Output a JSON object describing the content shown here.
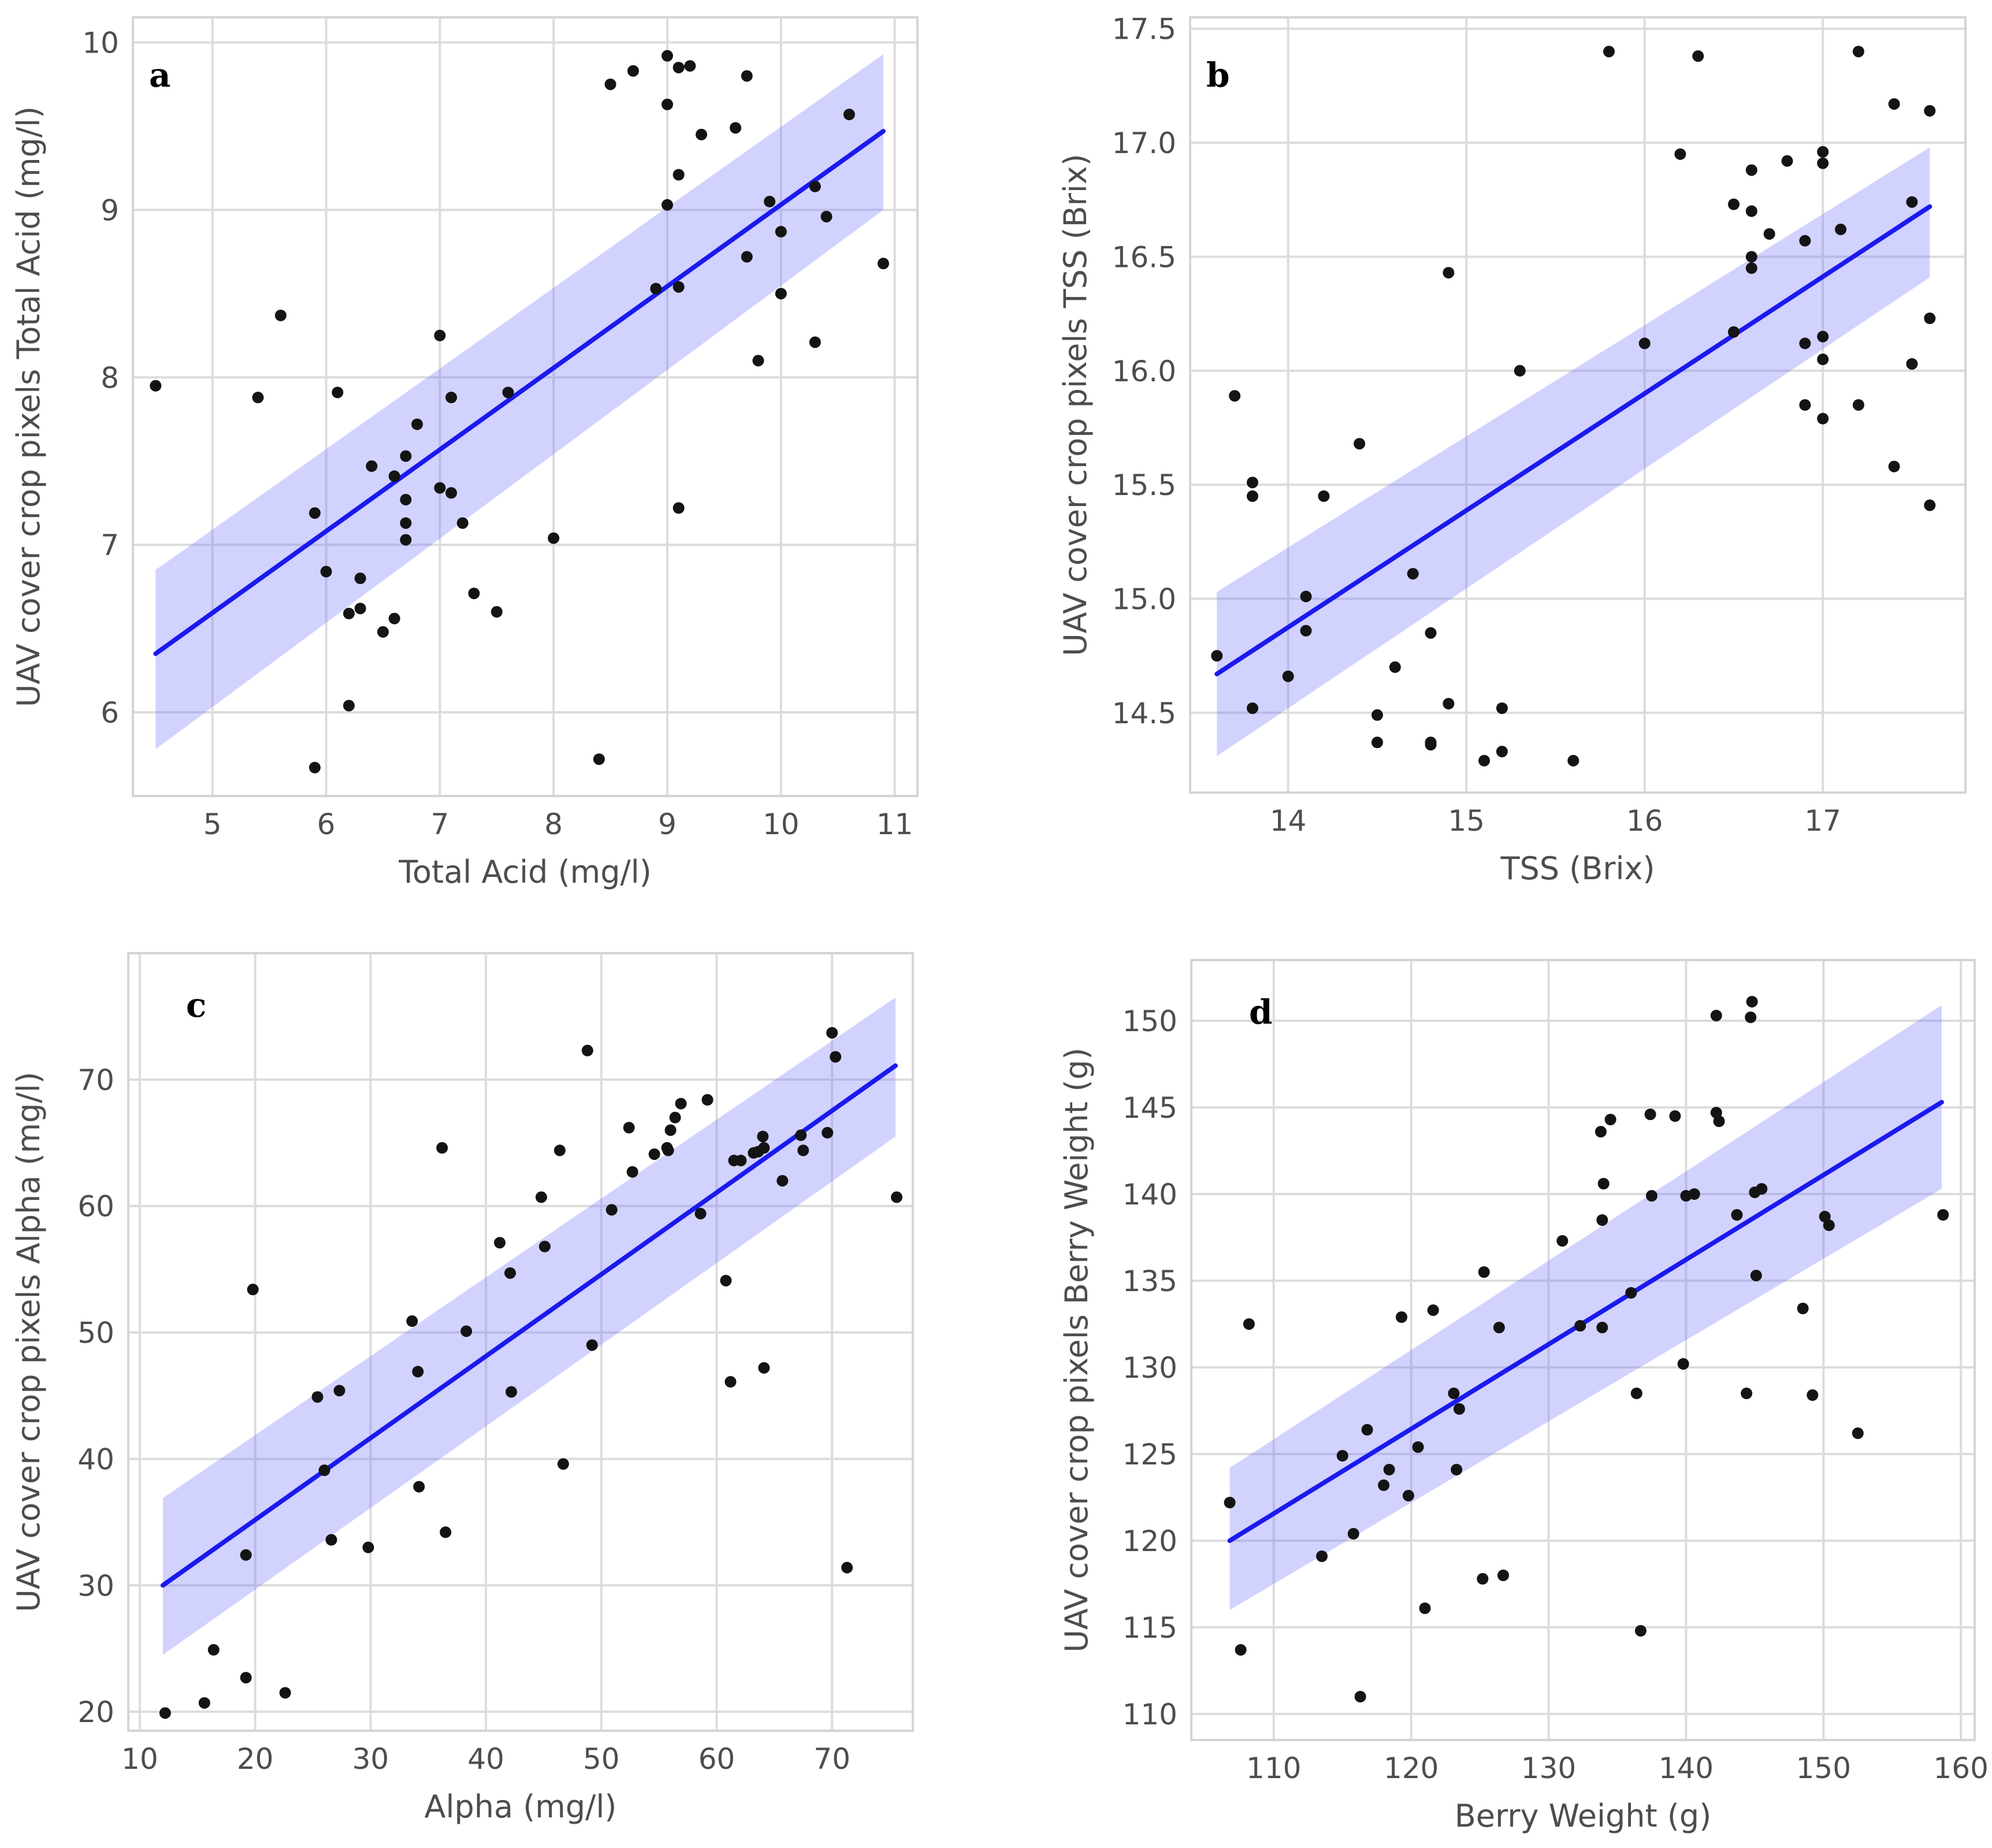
{
  "chart_data": [
    {
      "type": "scatter",
      "panel_label": "a",
      "xlabel": "Total Acid (mg/l)",
      "ylabel": "UAV cover crop pixels Total Acid (mg/l)",
      "xlim": [
        4.3,
        11.2
      ],
      "ylim": [
        5.5,
        10.15
      ],
      "xticks": [
        5,
        6,
        7,
        8,
        9,
        10,
        11
      ],
      "yticks": [
        6,
        7,
        8,
        9,
        10
      ],
      "grid": true,
      "fit": {
        "x0": 4.5,
        "x1": 10.9,
        "y0": 6.35,
        "y1": 9.47,
        "ci_lo0": 5.78,
        "ci_lo1": 9.0,
        "ci_hi0": 6.85,
        "ci_hi1": 9.93
      },
      "points": [
        [
          4.5,
          7.95
        ],
        [
          5.4,
          7.88
        ],
        [
          5.6,
          8.37
        ],
        [
          5.9,
          7.19
        ],
        [
          5.9,
          5.67
        ],
        [
          6.0,
          6.84
        ],
        [
          6.1,
          7.91
        ],
        [
          6.2,
          6.59
        ],
        [
          6.2,
          6.04
        ],
        [
          6.3,
          6.8
        ],
        [
          6.3,
          6.62
        ],
        [
          6.4,
          7.47
        ],
        [
          6.5,
          6.48
        ],
        [
          6.6,
          7.41
        ],
        [
          6.6,
          6.56
        ],
        [
          6.7,
          7.53
        ],
        [
          6.7,
          7.27
        ],
        [
          6.7,
          7.13
        ],
        [
          6.7,
          7.03
        ],
        [
          6.8,
          7.72
        ],
        [
          7.0,
          8.25
        ],
        [
          7.0,
          7.34
        ],
        [
          7.1,
          7.88
        ],
        [
          7.1,
          7.31
        ],
        [
          7.2,
          7.13
        ],
        [
          7.3,
          6.71
        ],
        [
          7.5,
          6.6
        ],
        [
          7.6,
          7.91
        ],
        [
          8.0,
          7.04
        ],
        [
          8.4,
          5.72
        ],
        [
          8.5,
          9.75
        ],
        [
          8.7,
          9.83
        ],
        [
          8.9,
          8.53
        ],
        [
          9.0,
          9.92
        ],
        [
          9.0,
          9.63
        ],
        [
          9.0,
          9.03
        ],
        [
          9.1,
          9.85
        ],
        [
          9.1,
          9.21
        ],
        [
          9.1,
          8.54
        ],
        [
          9.1,
          7.22
        ],
        [
          9.2,
          9.86
        ],
        [
          9.3,
          9.45
        ],
        [
          9.6,
          9.49
        ],
        [
          9.7,
          9.8
        ],
        [
          9.7,
          8.72
        ],
        [
          9.8,
          8.1
        ],
        [
          9.9,
          9.05
        ],
        [
          10.0,
          8.87
        ],
        [
          10.0,
          8.5
        ],
        [
          10.3,
          9.14
        ],
        [
          10.3,
          8.21
        ],
        [
          10.4,
          8.96
        ],
        [
          10.6,
          9.57
        ],
        [
          10.9,
          8.68
        ]
      ]
    },
    {
      "type": "scatter",
      "panel_label": "b",
      "xlabel": "TSS (Brix)",
      "ylabel": "UAV cover crop pixels TSS (Brix)",
      "xlim": [
        13.45,
        17.8
      ],
      "ylim": [
        14.15,
        17.55
      ],
      "xticks": [
        14,
        15,
        16,
        17
      ],
      "yticks": [
        14.5,
        15.0,
        15.5,
        16.0,
        16.5,
        17.0,
        17.5
      ],
      "grid": true,
      "fit": {
        "x0": 13.6,
        "x1": 17.6,
        "y0": 14.67,
        "y1": 16.72,
        "ci_lo0": 14.31,
        "ci_lo1": 16.41,
        "ci_hi0": 15.03,
        "ci_hi1": 16.98
      },
      "points": [
        [
          13.6,
          14.75
        ],
        [
          13.7,
          15.89
        ],
        [
          13.8,
          15.51
        ],
        [
          13.8,
          15.45
        ],
        [
          13.8,
          14.52
        ],
        [
          14.0,
          14.66
        ],
        [
          14.1,
          15.01
        ],
        [
          14.1,
          14.86
        ],
        [
          14.2,
          15.45
        ],
        [
          14.4,
          15.68
        ],
        [
          14.5,
          14.49
        ],
        [
          14.5,
          14.37
        ],
        [
          14.6,
          14.7
        ],
        [
          14.7,
          15.11
        ],
        [
          14.8,
          14.85
        ],
        [
          14.8,
          14.37
        ],
        [
          14.8,
          14.36
        ],
        [
          14.9,
          16.43
        ],
        [
          14.9,
          14.54
        ],
        [
          15.1,
          14.29
        ],
        [
          15.2,
          14.52
        ],
        [
          15.2,
          14.33
        ],
        [
          15.3,
          16.0
        ],
        [
          15.6,
          14.29
        ],
        [
          15.8,
          17.4
        ],
        [
          16.0,
          16.12
        ],
        [
          16.2,
          16.95
        ],
        [
          16.3,
          17.38
        ],
        [
          16.5,
          16.73
        ],
        [
          16.5,
          16.17
        ],
        [
          16.6,
          16.88
        ],
        [
          16.6,
          16.7
        ],
        [
          16.6,
          16.5
        ],
        [
          16.6,
          16.45
        ],
        [
          16.7,
          16.6
        ],
        [
          16.8,
          16.92
        ],
        [
          16.9,
          16.57
        ],
        [
          16.9,
          16.12
        ],
        [
          16.9,
          15.85
        ],
        [
          17.0,
          16.96
        ],
        [
          17.0,
          16.91
        ],
        [
          17.0,
          16.15
        ],
        [
          17.0,
          16.05
        ],
        [
          17.0,
          15.79
        ],
        [
          17.1,
          16.62
        ],
        [
          17.2,
          17.4
        ],
        [
          17.2,
          15.85
        ],
        [
          17.4,
          17.17
        ],
        [
          17.4,
          15.58
        ],
        [
          17.5,
          16.74
        ],
        [
          17.5,
          16.03
        ],
        [
          17.6,
          17.14
        ],
        [
          17.6,
          16.23
        ],
        [
          17.6,
          15.41
        ]
      ]
    },
    {
      "type": "scatter",
      "panel_label": "c",
      "xlabel": "Alpha (mg/l)",
      "ylabel": "UAV cover crop pixels Alpha (mg/l)",
      "xlim": [
        9,
        77
      ],
      "ylim": [
        18.5,
        80
      ],
      "xticks": [
        10,
        20,
        30,
        40,
        50,
        60,
        70
      ],
      "yticks": [
        20,
        30,
        40,
        50,
        60,
        70
      ],
      "grid": true,
      "fit": {
        "x0": 12,
        "x1": 75.5,
        "y0": 30.0,
        "y1": 71.1,
        "ci_lo0": 24.5,
        "ci_lo1": 65.5,
        "ci_hi0": 36.9,
        "ci_hi1": 76.5
      },
      "points": [
        [
          12.2,
          19.9
        ],
        [
          15.6,
          20.7
        ],
        [
          16.4,
          24.9
        ],
        [
          19.2,
          22.7
        ],
        [
          19.2,
          32.4
        ],
        [
          19.8,
          53.4
        ],
        [
          22.6,
          21.5
        ],
        [
          25.4,
          44.9
        ],
        [
          26.0,
          39.1
        ],
        [
          26.6,
          33.6
        ],
        [
          27.3,
          45.4
        ],
        [
          29.8,
          33.0
        ],
        [
          33.6,
          50.9
        ],
        [
          34.1,
          46.9
        ],
        [
          34.2,
          37.8
        ],
        [
          36.2,
          64.6
        ],
        [
          36.5,
          34.2
        ],
        [
          38.3,
          50.1
        ],
        [
          41.2,
          57.1
        ],
        [
          42.1,
          54.7
        ],
        [
          42.2,
          45.3
        ],
        [
          44.8,
          60.7
        ],
        [
          45.1,
          56.8
        ],
        [
          46.4,
          64.4
        ],
        [
          46.7,
          39.6
        ],
        [
          48.8,
          72.3
        ],
        [
          49.2,
          49.0
        ],
        [
          50.9,
          59.7
        ],
        [
          52.4,
          66.2
        ],
        [
          52.7,
          62.7
        ],
        [
          54.6,
          64.1
        ],
        [
          55.7,
          64.6
        ],
        [
          55.8,
          64.4
        ],
        [
          56.0,
          66.0
        ],
        [
          56.4,
          67.0
        ],
        [
          56.9,
          68.1
        ],
        [
          58.6,
          59.4
        ],
        [
          59.2,
          68.4
        ],
        [
          60.8,
          54.1
        ],
        [
          61.2,
          46.1
        ],
        [
          61.5,
          63.6
        ],
        [
          62.1,
          63.6
        ],
        [
          63.2,
          64.2
        ],
        [
          63.6,
          64.3
        ],
        [
          64.0,
          65.5
        ],
        [
          64.1,
          64.6
        ],
        [
          64.1,
          47.2
        ],
        [
          65.7,
          62.0
        ],
        [
          67.3,
          65.6
        ],
        [
          67.5,
          64.4
        ],
        [
          69.6,
          65.8
        ],
        [
          70.0,
          73.7
        ],
        [
          70.3,
          71.8
        ],
        [
          71.3,
          31.4
        ],
        [
          75.6,
          60.7
        ]
      ]
    },
    {
      "type": "scatter",
      "panel_label": "d",
      "xlabel": "Berry Weight (g)",
      "ylabel": "UAV cover crop pixels Berry Weight (g)",
      "xlim": [
        104,
        161
      ],
      "ylim": [
        108.5,
        153.5
      ],
      "xticks": [
        110,
        120,
        130,
        140,
        150,
        160
      ],
      "yticks": [
        110,
        115,
        120,
        125,
        130,
        135,
        140,
        145,
        150
      ],
      "grid": true,
      "fit": {
        "x0": 106.8,
        "x1": 158.6,
        "y0": 120.0,
        "y1": 145.3,
        "ci_lo0": 116.0,
        "ci_lo1": 140.3,
        "ci_hi0": 124.2,
        "ci_hi1": 150.9
      },
      "points": [
        [
          106.8,
          122.2
        ],
        [
          107.6,
          113.7
        ],
        [
          108.2,
          132.5
        ],
        [
          113.5,
          119.1
        ],
        [
          115.0,
          124.9
        ],
        [
          115.8,
          120.4
        ],
        [
          116.3,
          111.0
        ],
        [
          116.8,
          126.4
        ],
        [
          118.0,
          123.2
        ],
        [
          118.4,
          124.1
        ],
        [
          119.3,
          132.9
        ],
        [
          119.8,
          122.6
        ],
        [
          120.5,
          125.4
        ],
        [
          121.0,
          116.1
        ],
        [
          121.6,
          133.3
        ],
        [
          123.1,
          128.5
        ],
        [
          123.3,
          124.1
        ],
        [
          123.5,
          127.6
        ],
        [
          125.2,
          117.8
        ],
        [
          125.3,
          135.5
        ],
        [
          126.4,
          132.3
        ],
        [
          126.7,
          118.0
        ],
        [
          131.0,
          137.3
        ],
        [
          132.3,
          132.4
        ],
        [
          133.8,
          143.6
        ],
        [
          133.9,
          138.5
        ],
        [
          133.9,
          132.3
        ],
        [
          134.0,
          140.6
        ],
        [
          134.5,
          144.3
        ],
        [
          136.0,
          134.3
        ],
        [
          136.4,
          128.5
        ],
        [
          136.7,
          114.8
        ],
        [
          137.4,
          144.6
        ],
        [
          137.5,
          139.9
        ],
        [
          139.2,
          144.5
        ],
        [
          139.8,
          130.2
        ],
        [
          140.0,
          139.9
        ],
        [
          140.6,
          140.0
        ],
        [
          142.2,
          150.3
        ],
        [
          142.2,
          144.7
        ],
        [
          142.4,
          144.2
        ],
        [
          143.7,
          138.8
        ],
        [
          144.4,
          128.5
        ],
        [
          144.7,
          150.2
        ],
        [
          144.8,
          151.1
        ],
        [
          145.0,
          140.1
        ],
        [
          145.1,
          135.3
        ],
        [
          145.5,
          140.3
        ],
        [
          148.5,
          133.4
        ],
        [
          149.2,
          128.4
        ],
        [
          150.1,
          138.7
        ],
        [
          150.4,
          138.2
        ],
        [
          152.5,
          126.2
        ],
        [
          158.7,
          138.8
        ]
      ]
    }
  ]
}
